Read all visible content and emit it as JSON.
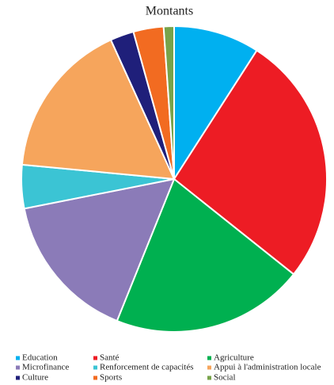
{
  "chart_data": {
    "type": "pie",
    "title": "Montants",
    "categories": [
      "Education",
      "Santé",
      "Agriculture",
      "Microfinance",
      "Renforcement de capacités",
      "Appui à l'administration locale",
      "Culture",
      "Sports",
      "Social"
    ],
    "values": [
      9.1,
      26.6,
      20.4,
      15.8,
      4.6,
      16.7,
      2.5,
      3.2,
      1.1
    ],
    "colors": [
      "#00b0f0",
      "#ed1c24",
      "#00b050",
      "#8b7bb8",
      "#3bc4d4",
      "#f6a55c",
      "#1f1f7a",
      "#f26b21",
      "#77a34a"
    ],
    "legend_position": "bottom"
  }
}
